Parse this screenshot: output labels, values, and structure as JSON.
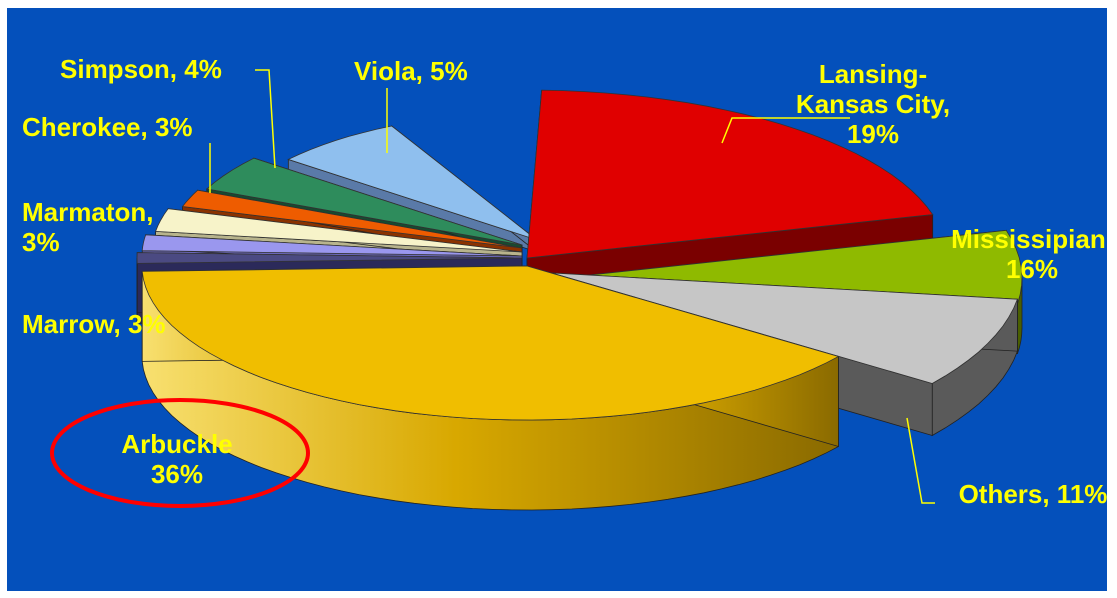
{
  "chart_data": {
    "type": "pie",
    "title": "",
    "style": "3d-exploded",
    "slices": [
      {
        "name": "Lansing-Kansas City",
        "value": 19,
        "color": "#e00000",
        "label_lines": [
          "Lansing-",
          "Kansas City,",
          "19%"
        ]
      },
      {
        "name": "Mississipian",
        "value": 16,
        "color": "#8fba00",
        "label_lines": [
          "Mississipian,",
          "16%"
        ]
      },
      {
        "name": "Others",
        "value": 11,
        "color": "#c6c6c6",
        "label_lines": [
          "Others, 11%"
        ]
      },
      {
        "name": "Arbuckle",
        "value": 36,
        "color": "#f0be00",
        "label_lines": [
          "Arbuckle",
          "36%"
        ]
      },
      {
        "name": "Marrow",
        "value": 3,
        "color": "#4b4a82",
        "label_lines": [
          "Marrow, 3%"
        ]
      },
      {
        "name": "Marmaton",
        "value": 3,
        "color": "#9a97ee",
        "label_lines": [
          "Marmaton,",
          "3%"
        ]
      },
      {
        "name": "Cherokee",
        "value": 3,
        "color": "#f7f3c9",
        "label_lines": [
          "Cherokee, 3%"
        ]
      },
      {
        "name": "Simpson",
        "value": 4,
        "color": "#ee5c00",
        "label_lines": [
          "Simpson, 4%"
        ]
      },
      {
        "name": "Viola",
        "value": 5,
        "color": "#2e8c5c",
        "label_lines": [
          "Viola, 5%"
        ]
      },
      {
        "name": "Viola-sliver",
        "value": 0,
        "color": "#8fbfee",
        "label_lines": []
      }
    ],
    "highlight": {
      "slice": "Arbuckle",
      "shape": "ellipse",
      "color": "#ff0000"
    },
    "background_color": "#0450bb",
    "label_color": "#ffff00"
  }
}
